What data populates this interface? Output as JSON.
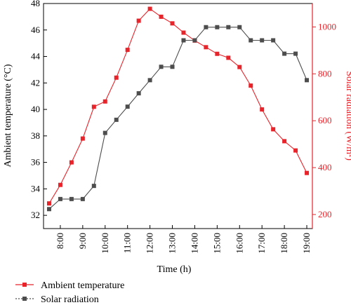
{
  "chart_data": {
    "type": "line",
    "title": "",
    "xlabel": "Time (h)",
    "ylabel_left": "Ambient temperature (°C)",
    "ylabel_right": "Solar radiation (W/m²)",
    "xlim": [
      7.25,
      19.25
    ],
    "ylim_left": [
      31,
      48
    ],
    "ylim_right": [
      140,
      1100
    ],
    "x_ticks": [
      8,
      9,
      10,
      11,
      12,
      13,
      14,
      15,
      16,
      17,
      18,
      19
    ],
    "x_tick_labels": [
      "8:00",
      "9:00",
      "10:00",
      "11:00",
      "12:00",
      "13:00",
      "14:00",
      "15:00",
      "16:00",
      "17:00",
      "18:00",
      "19:00"
    ],
    "y_left_ticks": [
      32,
      34,
      36,
      38,
      40,
      42,
      44,
      46,
      48
    ],
    "y_right_ticks": [
      200,
      400,
      600,
      800,
      1000
    ],
    "legend_position": "bottom-left",
    "grid": false,
    "series": [
      {
        "name": "Ambient temperature",
        "axis": "left",
        "color": "#e8232a",
        "marker": "square",
        "x": [
          7.5,
          8,
          8.5,
          9,
          9.5,
          10,
          10.5,
          11,
          11.5,
          12,
          12.5,
          13,
          13.5,
          14,
          14.5,
          15,
          15.5,
          16,
          16.5,
          17,
          17.5,
          18,
          18.5,
          19
        ],
        "y": [
          32.9,
          34.3,
          36.0,
          37.8,
          40.2,
          40.6,
          42.4,
          44.5,
          46.7,
          47.6,
          47.0,
          46.5,
          45.8,
          45.2,
          44.7,
          44.2,
          43.9,
          43.2,
          41.8,
          40.0,
          38.5,
          37.6,
          36.9,
          35.2
        ]
      },
      {
        "name": "Solar radiation",
        "axis": "right",
        "color": "#4d4d4d",
        "marker": "square",
        "x": [
          7.5,
          8,
          8.5,
          9,
          9.5,
          10,
          10.5,
          11,
          11.5,
          12,
          12.5,
          13,
          13.5,
          14,
          14.5,
          15,
          15.5,
          16,
          16.5,
          17,
          17.5,
          18,
          18.5,
          19
        ],
        "y": [
          223,
          266,
          266,
          266,
          322,
          548,
          604,
          660,
          717,
          773,
          830,
          830,
          943,
          943,
          999,
          999,
          999,
          999,
          943,
          943,
          943,
          886,
          886,
          773
        ]
      }
    ]
  }
}
